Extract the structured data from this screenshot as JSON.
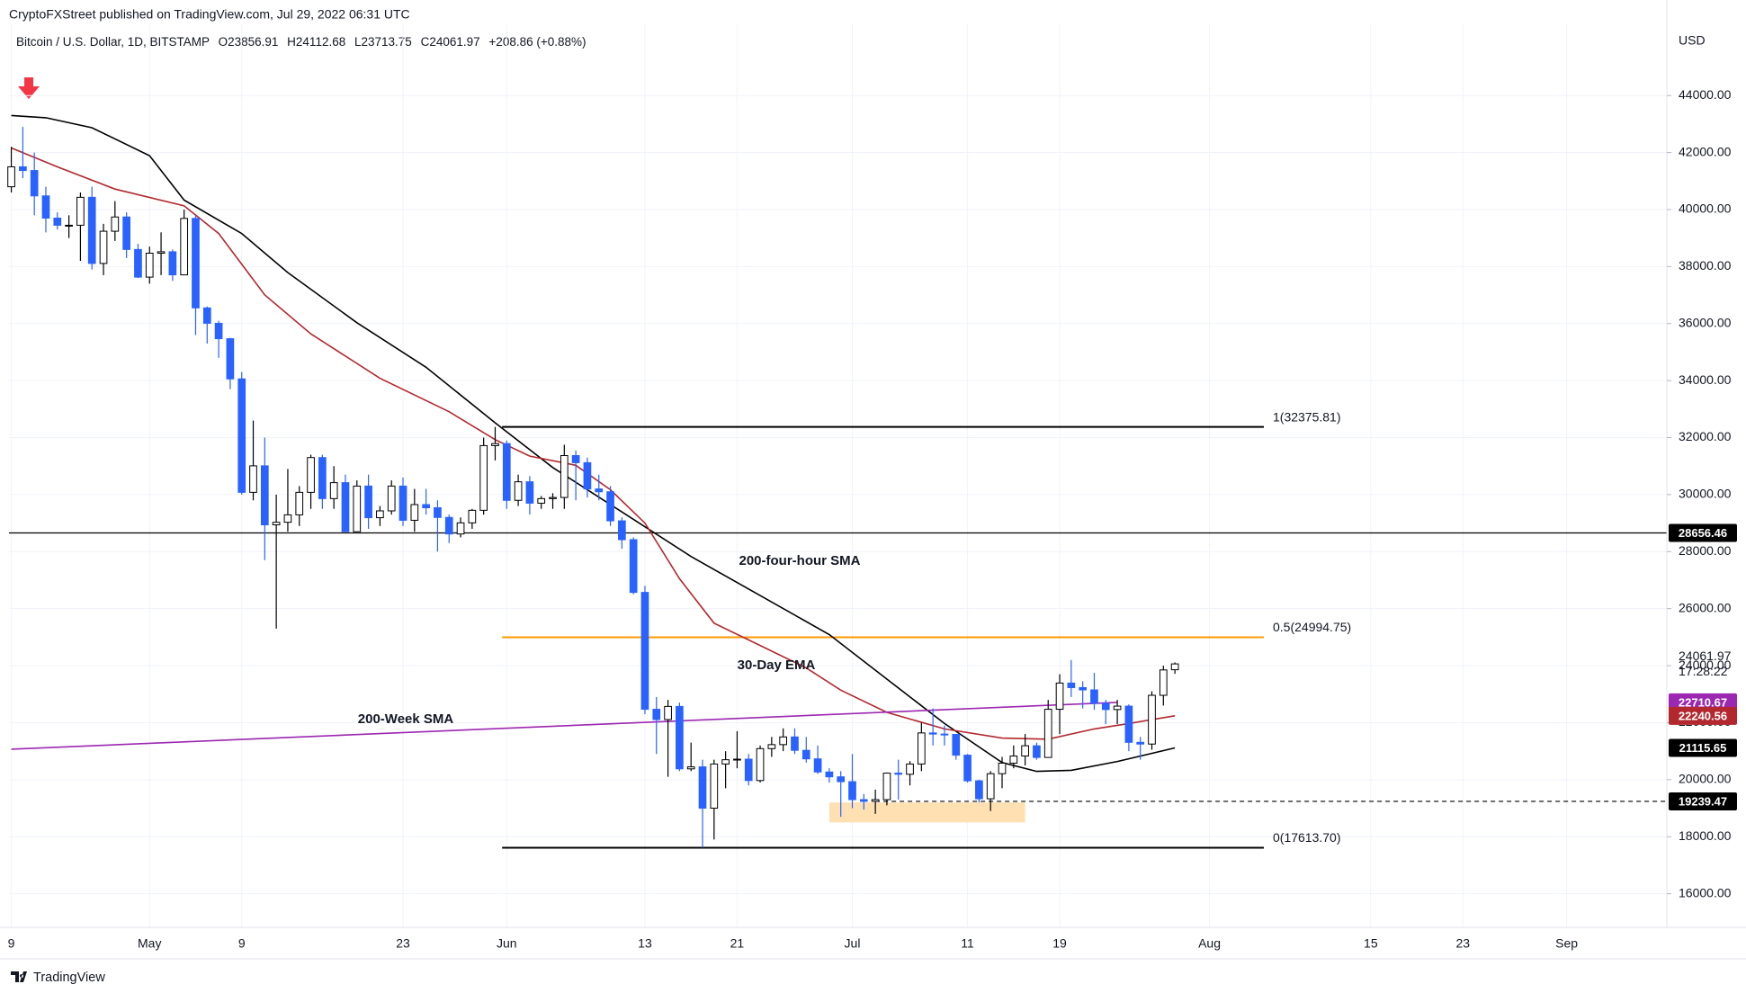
{
  "header": {
    "publisher": "CryptoFXStreet published on TradingView.com, Jul 29, 2022 06:31 UTC",
    "symbol": "Bitcoin / U.S. Dollar, 1D, BITSTAMP",
    "ohlc": [
      "O23856.91",
      "H24112.68",
      "L23713.75",
      "C24061.97",
      "+208.86 (+0.88%)"
    ]
  },
  "footer": "TradingView",
  "chart_data": {
    "type": "candlestick",
    "currency": "USD",
    "up_color": "#ffffff",
    "down_color": "#2962ff",
    "open": [
      40800,
      41500,
      41370,
      40480,
      39700,
      39450,
      39450,
      40430,
      38110,
      39240,
      39740,
      38600,
      37630,
      38470,
      38520,
      37710,
      39690,
      36550,
      36010,
      35470,
      34060,
      30080,
      31010,
      28940,
      29030,
      29290,
      30080,
      31300,
      29860,
      30420,
      28700,
      30300,
      29190,
      29430,
      30300,
      29100,
      29650,
      29540,
      29200,
      28620,
      29010,
      29450,
      31720,
      31790,
      29800,
      30450,
      29700,
      29860,
      29900,
      31370,
      31120,
      30200,
      30100,
      29080,
      28420,
      26570,
      22470,
      22110,
      22570,
      20380,
      20450,
      19000,
      20550,
      20700,
      20720,
      19970,
      21090,
      21230,
      21500,
      21030,
      20730,
      20270,
      20100,
      19930,
      19300,
      19240,
      19300,
      20230,
      20190,
      20550,
      21640,
      21600,
      21590,
      20860,
      19960,
      19330,
      20210,
      20580,
      20830,
      21190,
      20780,
      22470,
      23390,
      23230,
      23150,
      22680,
      22460,
      22580,
      21310,
      21250,
      22960,
      23856.91
    ],
    "high": [
      42200,
      42900,
      42000,
      40800,
      39900,
      39800,
      40600,
      40800,
      39500,
      40300,
      39900,
      38800,
      38700,
      39200,
      38600,
      40000,
      39800,
      36600,
      36100,
      35500,
      34300,
      32600,
      32000,
      30000,
      30900,
      30300,
      31400,
      31400,
      31000,
      30700,
      30500,
      30700,
      29600,
      30500,
      30600,
      30200,
      30200,
      29800,
      29300,
      29200,
      29500,
      32000,
      32376,
      31900,
      30700,
      30650,
      29950,
      30050,
      31750,
      31550,
      31300,
      30700,
      30300,
      29200,
      28500,
      26800,
      22900,
      22800,
      22700,
      21300,
      20700,
      20700,
      21000,
      21700,
      20900,
      21200,
      21500,
      21800,
      21800,
      21500,
      21200,
      20400,
      20300,
      20900,
      19500,
      19650,
      20250,
      20700,
      20650,
      22000,
      22500,
      21900,
      21600,
      20900,
      20000,
      20300,
      20800,
      21200,
      21600,
      21300,
      22800,
      23700,
      24200,
      23450,
      23750,
      22800,
      22800,
      22640,
      21500,
      23100,
      24000,
      24112.68
    ],
    "low": [
      40600,
      41100,
      39800,
      39200,
      39300,
      39000,
      38200,
      37900,
      37700,
      38900,
      38300,
      37600,
      37400,
      37700,
      37500,
      37700,
      35600,
      35300,
      34800,
      33700,
      30000,
      29800,
      27700,
      25300,
      28700,
      28900,
      29500,
      29500,
      29500,
      28700,
      28700,
      28800,
      28900,
      29300,
      28900,
      28700,
      29300,
      28000,
      28300,
      28500,
      28800,
      29300,
      31200,
      29500,
      29600,
      29300,
      29500,
      29500,
      29500,
      29800,
      29900,
      29800,
      28900,
      28100,
      26500,
      22300,
      20900,
      20100,
      20300,
      20300,
      17614,
      17900,
      19700,
      20400,
      19800,
      19900,
      20800,
      21000,
      20900,
      20600,
      20200,
      19900,
      18700,
      19000,
      18950,
      18800,
      19100,
      19300,
      19800,
      20300,
      21200,
      21200,
      20700,
      19900,
      19200,
      18900,
      19700,
      20400,
      20500,
      20700,
      20800,
      21600,
      22900,
      22500,
      22450,
      21950,
      21950,
      21000,
      20700,
      21050,
      22600,
      23713.75
    ],
    "close": [
      41500,
      41370,
      40480,
      39700,
      39450,
      39450,
      40430,
      38110,
      39240,
      39740,
      38600,
      37630,
      38470,
      38520,
      37710,
      39690,
      36550,
      36010,
      35470,
      34060,
      30080,
      31010,
      28940,
      29030,
      29290,
      30080,
      31300,
      29860,
      30420,
      28700,
      30300,
      29190,
      29430,
      30300,
      29100,
      29650,
      29540,
      29200,
      28620,
      29010,
      29450,
      31720,
      31790,
      29800,
      30450,
      29700,
      29860,
      29900,
      31370,
      31120,
      30200,
      30100,
      29080,
      28420,
      26570,
      22470,
      22110,
      22570,
      20380,
      20450,
      19000,
      20550,
      20700,
      20720,
      19970,
      21090,
      21230,
      21500,
      21030,
      20730,
      20270,
      20100,
      19930,
      19300,
      19240,
      19300,
      20230,
      20190,
      20550,
      21640,
      21600,
      21590,
      20860,
      19960,
      19330,
      20210,
      20580,
      20830,
      21190,
      20780,
      22470,
      23390,
      23230,
      23150,
      22680,
      22460,
      22580,
      21310,
      21250,
      22960,
      23850,
      24061.97
    ],
    "xlim": [
      -0.2,
      143.7
    ],
    "ylim": [
      14820,
      46500
    ],
    "xticks": [
      {
        "value": 0,
        "label": "9"
      },
      {
        "value": 12,
        "label": "May"
      },
      {
        "value": 20,
        "label": "9"
      },
      {
        "value": 34,
        "label": "23"
      },
      {
        "value": 43,
        "label": "Jun"
      },
      {
        "value": 55,
        "label": "13"
      },
      {
        "value": 63,
        "label": "21"
      },
      {
        "value": 73,
        "label": "Jul"
      },
      {
        "value": 83,
        "label": "11"
      },
      {
        "value": 91,
        "label": "19"
      },
      {
        "value": 104,
        "label": "Aug"
      },
      {
        "value": 118,
        "label": "15"
      },
      {
        "value": 126,
        "label": "23"
      },
      {
        "value": 135,
        "label": "Sep"
      }
    ],
    "yticks": [
      {
        "value": 16000,
        "label": "16000.00"
      },
      {
        "value": 18000,
        "label": "18000.00"
      },
      {
        "value": 20000,
        "label": "20000.00"
      },
      {
        "value": 22000,
        "label": "22000.00"
      },
      {
        "value": 24000,
        "label": "24000.00"
      },
      {
        "value": 26000,
        "label": "26000.00"
      },
      {
        "value": 28000,
        "label": "28000.00"
      },
      {
        "value": 30000,
        "label": "30000.00"
      },
      {
        "value": 32000,
        "label": "32000.00"
      },
      {
        "value": 34000,
        "label": "34000.00"
      },
      {
        "value": 36000,
        "label": "36000.00"
      },
      {
        "value": 38000,
        "label": "38000.00"
      },
      {
        "value": 40000,
        "label": "40000.00"
      },
      {
        "value": 42000,
        "label": "42000.00"
      },
      {
        "value": 44000,
        "label": "44000.00"
      }
    ],
    "series": [
      {
        "name": "200-four-hour SMA",
        "color": "#000000",
        "label_color": "#e5283c",
        "x": [
          0,
          3,
          7,
          12,
          15,
          20,
          24,
          30,
          36,
          42,
          47,
          53,
          59,
          65,
          71,
          76,
          81,
          86,
          89,
          92,
          96,
          101
        ],
        "values": [
          43300,
          43220,
          42870,
          41890,
          40330,
          39160,
          37790,
          36030,
          34470,
          32520,
          30950,
          29390,
          27830,
          26460,
          25090,
          23530,
          21970,
          20600,
          20290,
          20330,
          20640,
          21115.65
        ]
      },
      {
        "name": "30-Day EMA",
        "color": "#b2282e",
        "label_color": "#e5283c",
        "x": [
          0,
          4,
          9,
          15,
          18,
          22,
          26,
          32,
          38,
          42,
          45,
          49,
          52,
          55,
          58,
          61,
          65,
          69,
          72,
          76,
          81,
          86,
          90,
          94,
          97,
          101
        ],
        "values": [
          42160,
          41500,
          40720,
          40130,
          39160,
          37010,
          35640,
          34080,
          32910,
          31930,
          31350,
          31030,
          30170,
          29000,
          27050,
          25490,
          24710,
          23920,
          23140,
          22360,
          21780,
          21460,
          21420,
          21780,
          21970,
          22240.56
        ]
      },
      {
        "name": "200-Week SMA",
        "color": "#9c27b0",
        "label_color": "#9c27b0",
        "x": [
          0,
          96
        ],
        "values": [
          21070,
          22710.67
        ]
      }
    ],
    "fib_levels": [
      {
        "value": 32375.81,
        "label": "1(32375.81)",
        "color": "#000000"
      },
      {
        "value": 24994.75,
        "label": "0.5(24994.75)",
        "color": "#ff9800"
      },
      {
        "value": 17613.7,
        "label": "0(17613.70)",
        "color": "#000000"
      }
    ],
    "zone": {
      "low": 18500,
      "high": 19200,
      "color": "#ffe0b2"
    },
    "price_labels": [
      {
        "value": 28656.46,
        "color": "#000000",
        "line": "solid"
      },
      {
        "value": 24061.97,
        "countdown": "17:28:22"
      },
      {
        "value": 22710.67,
        "color": "#9c27b0"
      },
      {
        "value": 22240.56,
        "color": "#b2282e"
      },
      {
        "value": 21115.65,
        "color": "#000000"
      },
      {
        "value": 19239.47,
        "color": "#000000",
        "line": "dashed"
      }
    ]
  }
}
